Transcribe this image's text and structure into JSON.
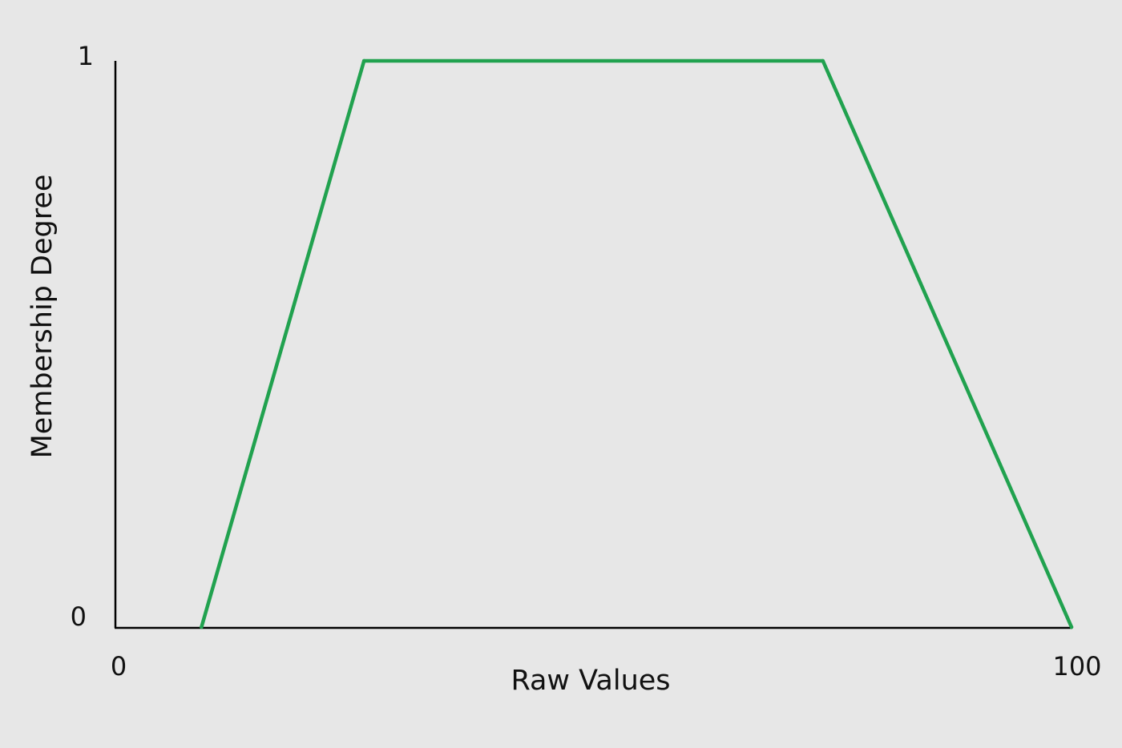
{
  "chart_data": {
    "type": "line",
    "title": "",
    "xlabel": "Raw Values",
    "ylabel": "Membership Degree",
    "xlim": [
      0,
      100
    ],
    "ylim": [
      0,
      1
    ],
    "x_tick_labels": [
      "0",
      "100"
    ],
    "y_tick_labels": [
      "0",
      "1"
    ],
    "grid": false,
    "legend": "none",
    "series": [
      {
        "color": "#21a24f",
        "points": [
          {
            "x": 9,
            "y": 0
          },
          {
            "x": 26,
            "y": 1
          },
          {
            "x": 74,
            "y": 1
          },
          {
            "x": 100,
            "y": 0
          }
        ]
      }
    ]
  }
}
